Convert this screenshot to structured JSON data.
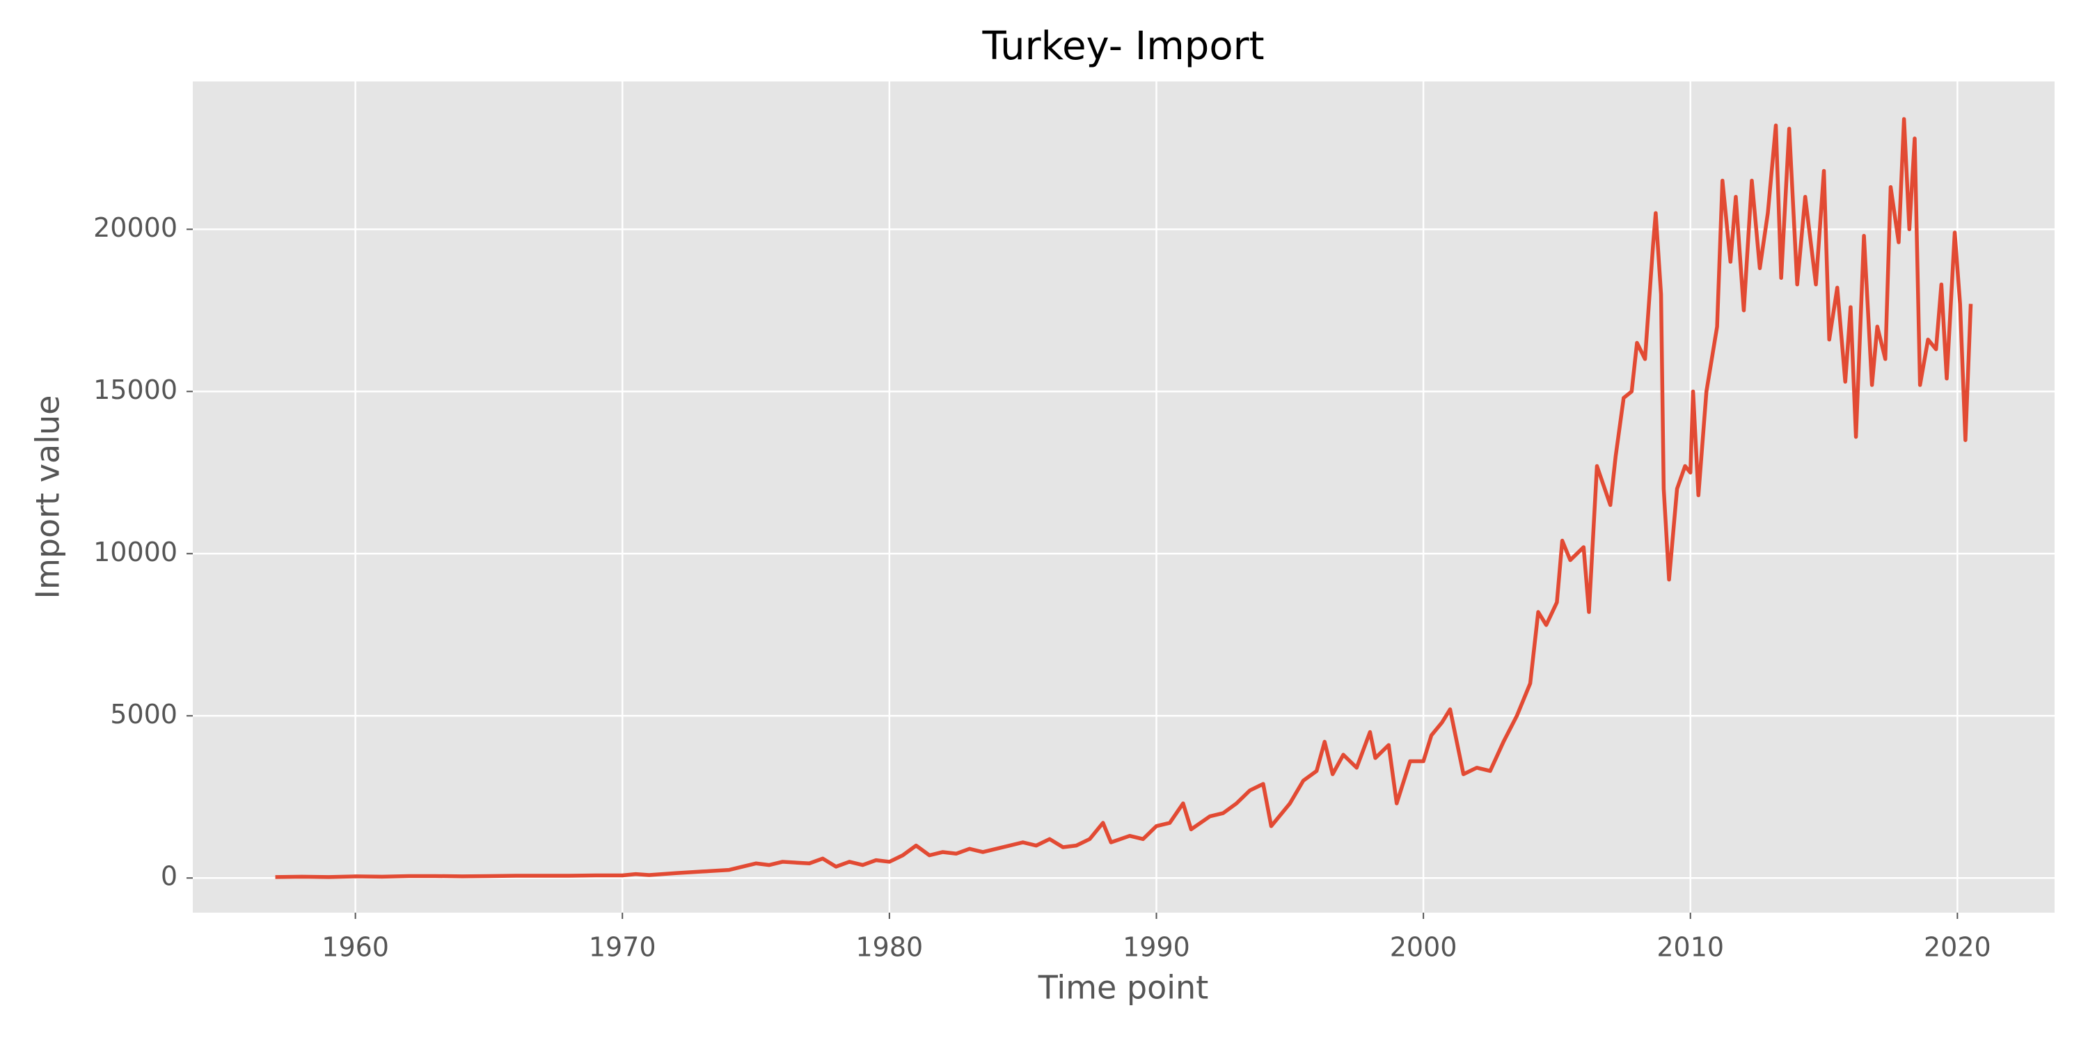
{
  "chart_data": {
    "type": "line",
    "title": "Turkey- Import",
    "x_label": "Time point",
    "y_label": "Import value",
    "x": [
      1957.0,
      1958.0,
      1959.0,
      1960.0,
      1961.0,
      1962.0,
      1963.0,
      1964.0,
      1965.0,
      1966.0,
      1967.0,
      1968.0,
      1969.0,
      1970.0,
      1970.5,
      1971.0,
      1972.0,
      1973.0,
      1974.0,
      1974.5,
      1975.0,
      1975.5,
      1976.0,
      1977.0,
      1977.5,
      1978.0,
      1978.5,
      1979.0,
      1979.5,
      1980.0,
      1980.5,
      1981.0,
      1981.5,
      1982.0,
      1982.5,
      1983.0,
      1983.5,
      1984.0,
      1984.5,
      1985.0,
      1985.5,
      1986.0,
      1986.5,
      1987.0,
      1987.5,
      1988.0,
      1988.3,
      1989.0,
      1989.5,
      1990.0,
      1990.5,
      1991.0,
      1991.3,
      1992.0,
      1992.5,
      1993.0,
      1993.5,
      1994.0,
      1994.3,
      1995.0,
      1995.5,
      1996.0,
      1996.3,
      1996.6,
      1997.0,
      1997.5,
      1998.0,
      1998.2,
      1998.7,
      1999.0,
      1999.5,
      2000.0,
      2000.3,
      2000.7,
      2001.0,
      2001.5,
      2002.0,
      2002.5,
      2003.0,
      2003.5,
      2004.0,
      2004.3,
      2004.6,
      2005.0,
      2005.2,
      2005.5,
      2006.0,
      2006.2,
      2006.5,
      2007.0,
      2007.2,
      2007.5,
      2007.8,
      2008.0,
      2008.3,
      2008.6,
      2008.7,
      2008.9,
      2009.0,
      2009.2,
      2009.5,
      2009.8,
      2010.0,
      2010.1,
      2010.3,
      2010.6,
      2010.8,
      2011.0,
      2011.2,
      2011.5,
      2011.7,
      2012.0,
      2012.3,
      2012.6,
      2012.9,
      2013.2,
      2013.4,
      2013.7,
      2014.0,
      2014.3,
      2014.7,
      2015.0,
      2015.2,
      2015.5,
      2015.8,
      2016.0,
      2016.2,
      2016.5,
      2016.8,
      2017.0,
      2017.3,
      2017.5,
      2017.8,
      2018.0,
      2018.2,
      2018.4,
      2018.6,
      2018.9,
      2019.2,
      2019.4,
      2019.6,
      2019.9,
      2020.1,
      2020.3,
      2020.5
    ],
    "values": [
      30,
      40,
      30,
      50,
      40,
      60,
      60,
      50,
      60,
      70,
      70,
      70,
      80,
      80,
      120,
      90,
      150,
      200,
      250,
      350,
      450,
      400,
      500,
      450,
      600,
      350,
      500,
      400,
      550,
      500,
      700,
      1000,
      700,
      800,
      750,
      900,
      800,
      900,
      1000,
      1100,
      1000,
      1200,
      950,
      1000,
      1200,
      1700,
      1100,
      1300,
      1200,
      1600,
      1700,
      2300,
      1500,
      1900,
      2000,
      2300,
      2700,
      2900,
      1600,
      2300,
      3000,
      3300,
      4200,
      3200,
      3800,
      3400,
      4500,
      3700,
      4100,
      2300,
      3600,
      3600,
      4400,
      4800,
      5200,
      3200,
      3400,
      3300,
      4200,
      5000,
      6000,
      8200,
      7800,
      8500,
      10400,
      9800,
      10200,
      8200,
      12700,
      11500,
      13000,
      14800,
      15000,
      16500,
      16000,
      19500,
      20500,
      18000,
      12000,
      9200,
      12000,
      12700,
      12500,
      15000,
      11800,
      15000,
      16000,
      17000,
      21500,
      19000,
      21000,
      17500,
      21500,
      18800,
      20500,
      23200,
      18500,
      23100,
      18300,
      21000,
      18300,
      21800,
      16600,
      18200,
      15300,
      17600,
      13600,
      19800,
      15200,
      17000,
      16000,
      21300,
      19600,
      23400,
      20000,
      22800,
      15200,
      16600,
      16300,
      18300,
      15400,
      19900,
      17700,
      13500,
      17700
    ],
    "color": "#E24A33",
    "xlim": [
      1953.91,
      2023.64
    ],
    "xticks": [
      1960,
      1970,
      1980,
      1990,
      2000,
      2010,
      2020
    ],
    "ylim": [
      -1068,
      24558
    ],
    "yticks": [
      0,
      5000,
      10000,
      15000,
      20000
    ],
    "grid": true
  }
}
